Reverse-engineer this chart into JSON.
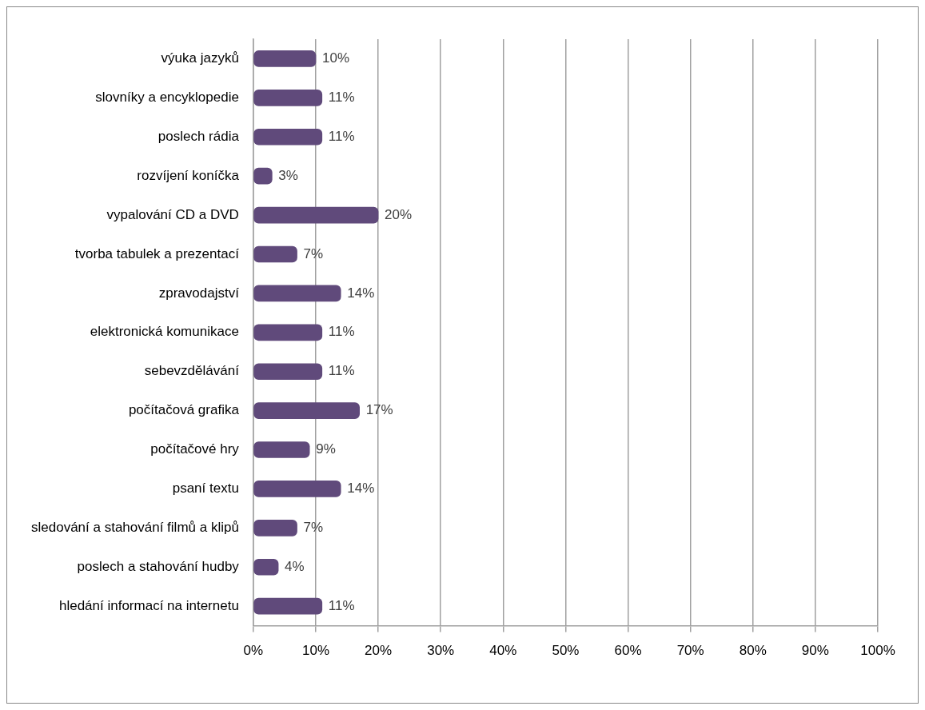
{
  "chart_data": {
    "type": "bar",
    "orientation": "horizontal",
    "categories": [
      "výuka jazyků",
      "slovníky a encyklopedie",
      "poslech rádia",
      "rozvíjení koníčka",
      "vypalování CD a DVD",
      "tvorba tabulek a prezentací",
      "zpravodajství",
      "elektronická komunikace",
      "sebevzdělávání",
      "počítačová grafika",
      "počítačové hry",
      "psaní textu",
      "sledování a stahování filmů a klipů",
      "poslech a stahování hudby",
      "hledání informací na internetu"
    ],
    "values": [
      10,
      11,
      11,
      3,
      20,
      7,
      14,
      11,
      11,
      17,
      9,
      14,
      7,
      4,
      11
    ],
    "value_labels": [
      "10%",
      "11%",
      "11%",
      "3%",
      "20%",
      "7%",
      "14%",
      "11%",
      "11%",
      "17%",
      "9%",
      "14%",
      "7%",
      "4%",
      "11%"
    ],
    "color": "#604a7b",
    "xlim": [
      0,
      100
    ],
    "xticks": [
      {
        "value": 0,
        "label": "0%"
      },
      {
        "value": 10,
        "label": "10%"
      },
      {
        "value": 20,
        "label": "20%"
      },
      {
        "value": 30,
        "label": "30%"
      },
      {
        "value": 40,
        "label": "40%"
      },
      {
        "value": 50,
        "label": "50%"
      },
      {
        "value": 60,
        "label": "60%"
      },
      {
        "value": 70,
        "label": "70%"
      },
      {
        "value": 80,
        "label": "80%"
      },
      {
        "value": 90,
        "label": "90%"
      },
      {
        "value": 100,
        "label": "100%"
      }
    ],
    "grid": "x",
    "legend": false
  }
}
